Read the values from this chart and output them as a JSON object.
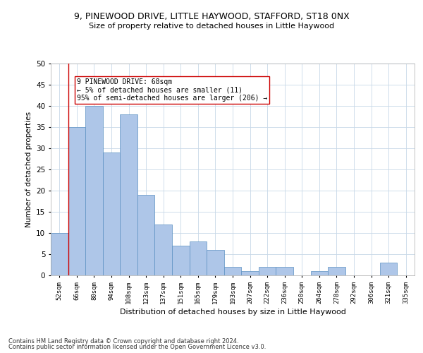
{
  "title_line1": "9, PINEWOOD DRIVE, LITTLE HAYWOOD, STAFFORD, ST18 0NX",
  "title_line2": "Size of property relative to detached houses in Little Haywood",
  "xlabel": "Distribution of detached houses by size in Little Haywood",
  "ylabel": "Number of detached properties",
  "categories": [
    "52sqm",
    "66sqm",
    "80sqm",
    "94sqm",
    "108sqm",
    "123sqm",
    "137sqm",
    "151sqm",
    "165sqm",
    "179sqm",
    "193sqm",
    "207sqm",
    "222sqm",
    "236sqm",
    "250sqm",
    "264sqm",
    "278sqm",
    "292sqm",
    "306sqm",
    "321sqm",
    "335sqm"
  ],
  "values": [
    10,
    35,
    40,
    29,
    38,
    19,
    12,
    7,
    8,
    6,
    2,
    1,
    2,
    2,
    0,
    1,
    2,
    0,
    0,
    3,
    0
  ],
  "bar_color": "#aec6e8",
  "bar_edge_color": "#5a8fc2",
  "vline_color": "#cc0000",
  "annotation_text": "9 PINEWOOD DRIVE: 68sqm\n← 5% of detached houses are smaller (11)\n95% of semi-detached houses are larger (206) →",
  "annotation_box_color": "#ffffff",
  "annotation_box_edge": "#cc0000",
  "ylim": [
    0,
    50
  ],
  "yticks": [
    0,
    5,
    10,
    15,
    20,
    25,
    30,
    35,
    40,
    45,
    50
  ],
  "footer_line1": "Contains HM Land Registry data © Crown copyright and database right 2024.",
  "footer_line2": "Contains public sector information licensed under the Open Government Licence v3.0.",
  "bg_color": "#ffffff",
  "grid_color": "#c8d8e8"
}
